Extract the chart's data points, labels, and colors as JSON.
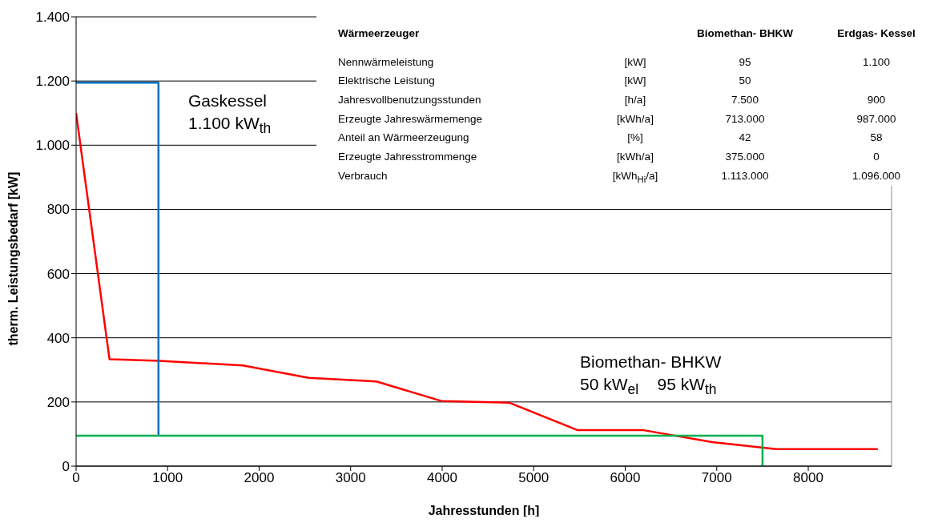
{
  "chart_data": {
    "type": "line",
    "xlabel": "Jahresstunden [h]",
    "ylabel": "therm. Leistungsbedarf [kW]",
    "xlim": [
      0,
      8910
    ],
    "xticks": [
      0,
      1000,
      2000,
      3000,
      4000,
      5000,
      6000,
      7000,
      8000
    ],
    "ylim": [
      0,
      1400
    ],
    "yticks": [
      0,
      200,
      400,
      600,
      800,
      {
        "value": 1000,
        "label": "1.000"
      },
      {
        "value": 1200,
        "label": "1.200"
      },
      {
        "value": 1400,
        "label": "1.400"
      }
    ],
    "grid": "y",
    "legend": false,
    "marker": "none",
    "line_style": "solid",
    "series": [
      {
        "color": "#ff0000",
        "x": [
          0,
          365,
          900,
          1820,
          2540,
          3280,
          3990,
          4730,
          5480,
          6200,
          6950,
          7650,
          8760
        ],
        "values": [
          1100,
          333,
          328,
          314,
          275,
          264,
          203,
          198,
          112,
          112,
          75,
          53,
          53
        ]
      },
      {
        "color": "#0070c0",
        "x": [
          0,
          900,
          900
        ],
        "values": [
          1195,
          1195,
          95
        ]
      },
      {
        "color": "#00b050",
        "x": [
          0,
          7500,
          7500
        ],
        "values": [
          95,
          95,
          0
        ]
      }
    ],
    "annotations": [
      "Gaskessel\n1.100 kW$_{th}$",
      "Biomethan- BHKW\n50 kW$_{el}$    95 kW$_{th}$",
      "Wärmeerzeuger",
      "Biomethan- BHKW",
      "Erdgas- Kessel",
      "Nennwärmeleistung",
      "[kW]",
      "95",
      "1.100",
      "Elektrische Leistung",
      "[kW]",
      "50",
      "Jahresvollbenutzungsstunden",
      "[h/a]",
      "7.500",
      "900",
      "Erzeugte Jahreswärmemenge",
      "[kWh/a]",
      "713.000",
      "987.000",
      "Anteil an Wärmeerzeugung",
      "[%]",
      "42",
      "58",
      "Erzeugte Jahresstrommenge",
      "[kWh/a]",
      "375.000",
      "0",
      "Verbrauch",
      "[kWh$_{Hi}$/a]",
      "1.113.000",
      "1.096.000"
    ]
  }
}
